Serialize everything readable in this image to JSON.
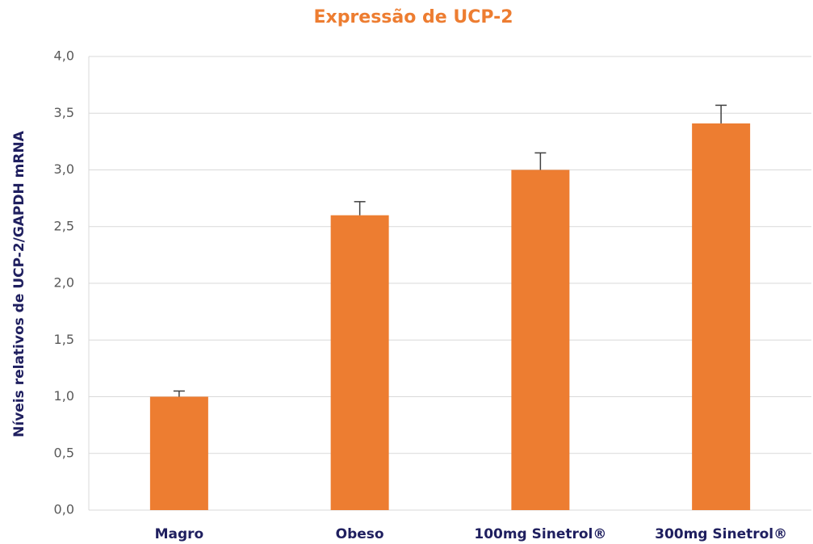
{
  "chart_data": {
    "type": "bar",
    "title": "Expressão de UCP-2",
    "y_label": "Níveis relativos de UCP-2/GAPDH mRNA",
    "categories": [
      "Magro",
      "Obeso",
      "100mg Sinetrol®",
      "300mg Sinetrol®"
    ],
    "values": [
      1.0,
      2.6,
      3.0,
      3.41
    ],
    "errors": [
      0.05,
      0.12,
      0.15,
      0.16
    ],
    "color": "#ed7d31",
    "ylim": [
      0,
      4
    ],
    "yticks": [
      {
        "value": 0,
        "label": "0,0"
      },
      {
        "value": 0.5,
        "label": "0,5"
      },
      {
        "value": 1,
        "label": "1,0"
      },
      {
        "value": 1.5,
        "label": "1,5"
      },
      {
        "value": 2,
        "label": "2,0"
      },
      {
        "value": 2.5,
        "label": "2,5"
      },
      {
        "value": 3,
        "label": "3,0"
      },
      {
        "value": 3.5,
        "label": "3,5"
      },
      {
        "value": 4,
        "label": "4,0"
      }
    ],
    "grid": true
  }
}
